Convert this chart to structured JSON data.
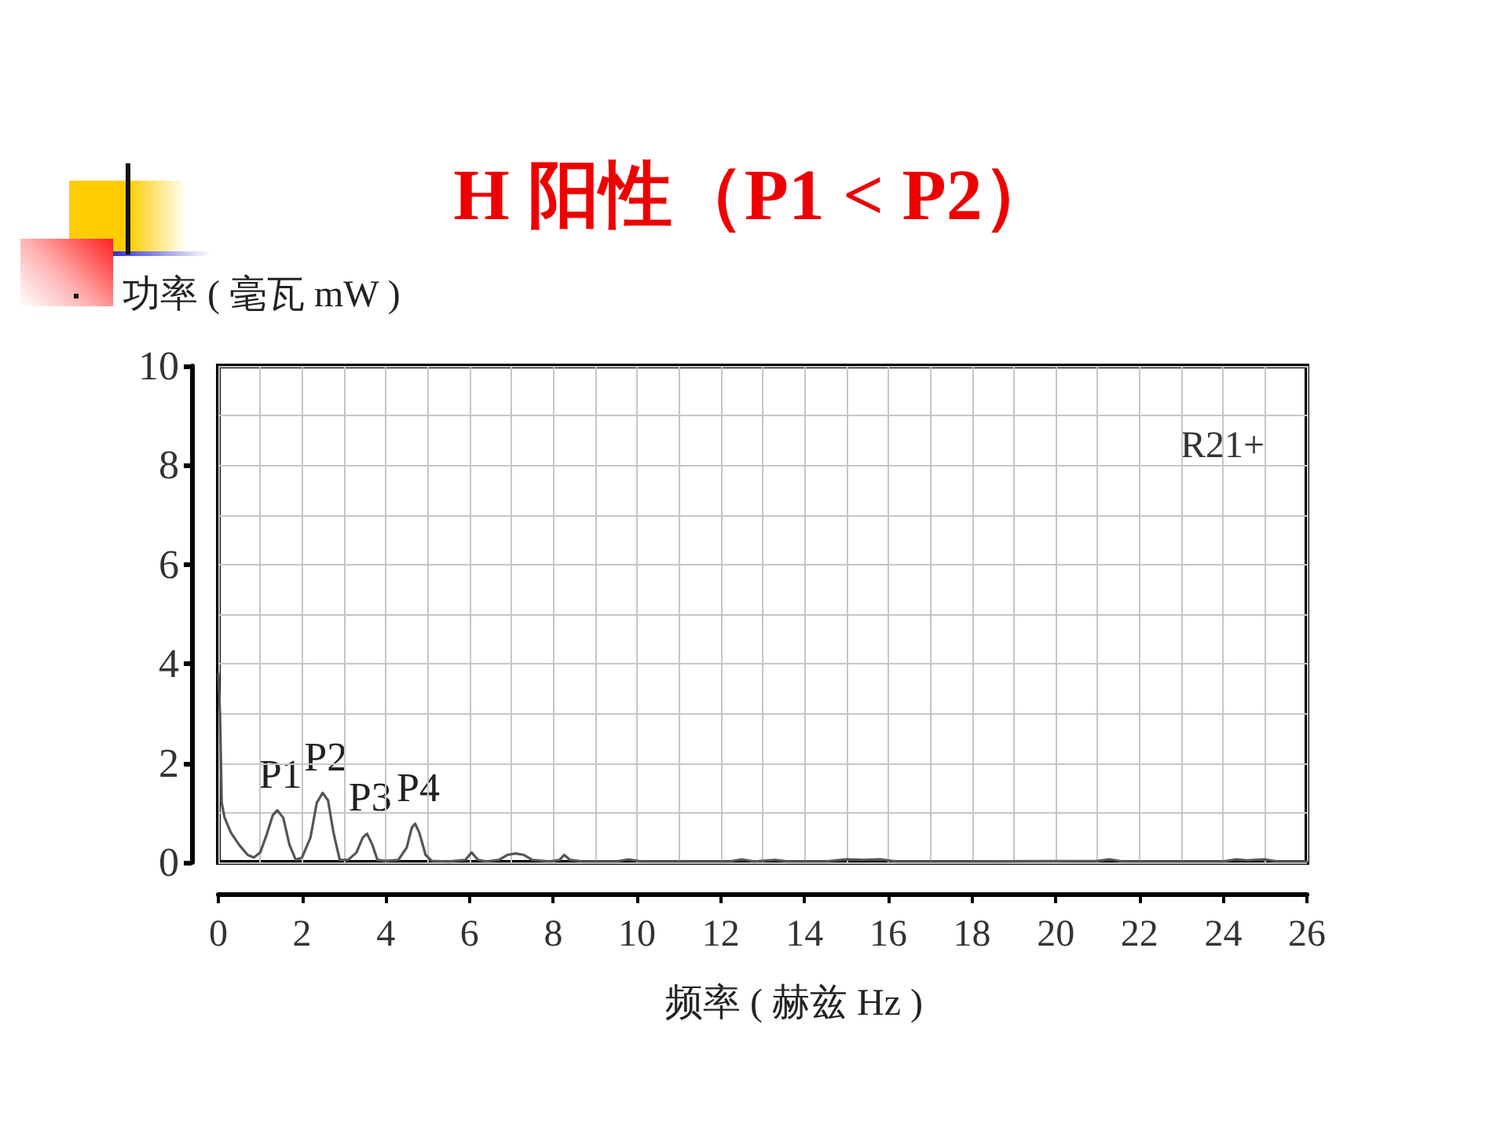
{
  "chart_data": {
    "type": "line",
    "title": "H 阳性（P1 < P2）",
    "xlabel": "频率 ( 赫兹 Hz )",
    "ylabel": "功率 ( 毫瓦 mW )",
    "annotations": [
      "R21+",
      {
        "text": "P1",
        "x": 1.41,
        "y": 1.05
      },
      {
        "text": "P2",
        "x": 2.49,
        "y": 1.4
      },
      {
        "text": "P3",
        "x": 3.55,
        "y": 0.58
      },
      {
        "text": "P4",
        "x": 4.7,
        "y": 0.78
      }
    ],
    "x": [
      0,
      0.04,
      0.08,
      0.15,
      0.3,
      0.5,
      0.7,
      0.85,
      1.0,
      1.15,
      1.3,
      1.41,
      1.55,
      1.7,
      1.85,
      2.0,
      2.2,
      2.35,
      2.49,
      2.62,
      2.75,
      2.9,
      3.1,
      3.3,
      3.45,
      3.55,
      3.68,
      3.8,
      4.0,
      4.3,
      4.5,
      4.62,
      4.7,
      4.8,
      4.95,
      5.1,
      5.5,
      5.9,
      6.05,
      6.2,
      6.4,
      6.7,
      6.9,
      7.1,
      7.3,
      7.5,
      7.9,
      8.15,
      8.26,
      8.4,
      8.7,
      9.5,
      9.8,
      10.1,
      11,
      12.2,
      12.5,
      12.8,
      13.3,
      13.6,
      14.5,
      15,
      15.4,
      15.8,
      16.2,
      18,
      21,
      21.3,
      21.6,
      24,
      24.3,
      24.6,
      25,
      25.3,
      26
    ],
    "series": [
      {
        "color": "#555555",
        "values": [
          3.8,
          3.0,
          1.2,
          0.9,
          0.6,
          0.35,
          0.15,
          0.1,
          0.2,
          0.55,
          0.95,
          1.05,
          0.9,
          0.35,
          0.05,
          0.1,
          0.5,
          1.2,
          1.4,
          1.25,
          0.6,
          0.05,
          0.05,
          0.2,
          0.5,
          0.58,
          0.35,
          0.05,
          0.03,
          0.05,
          0.3,
          0.7,
          0.78,
          0.6,
          0.15,
          0.03,
          0.02,
          0.05,
          0.2,
          0.05,
          0.02,
          0.05,
          0.15,
          0.18,
          0.15,
          0.05,
          0.02,
          0.05,
          0.15,
          0.05,
          0.02,
          0.02,
          0.06,
          0.02,
          0.02,
          0.02,
          0.06,
          0.02,
          0.05,
          0.02,
          0.02,
          0.06,
          0.05,
          0.06,
          0.02,
          0.02,
          0.03,
          0.06,
          0.02,
          0.02,
          0.06,
          0.04,
          0.06,
          0.02,
          0.02
        ]
      }
    ],
    "xlim": [
      0,
      26
    ],
    "xticks": [
      0,
      2,
      4,
      6,
      8,
      10,
      12,
      14,
      16,
      18,
      20,
      22,
      24,
      26
    ],
    "ylim": [
      0,
      10
    ],
    "yticks": [
      0,
      2,
      4,
      6,
      8,
      10
    ],
    "grid": true,
    "marker": "none"
  }
}
